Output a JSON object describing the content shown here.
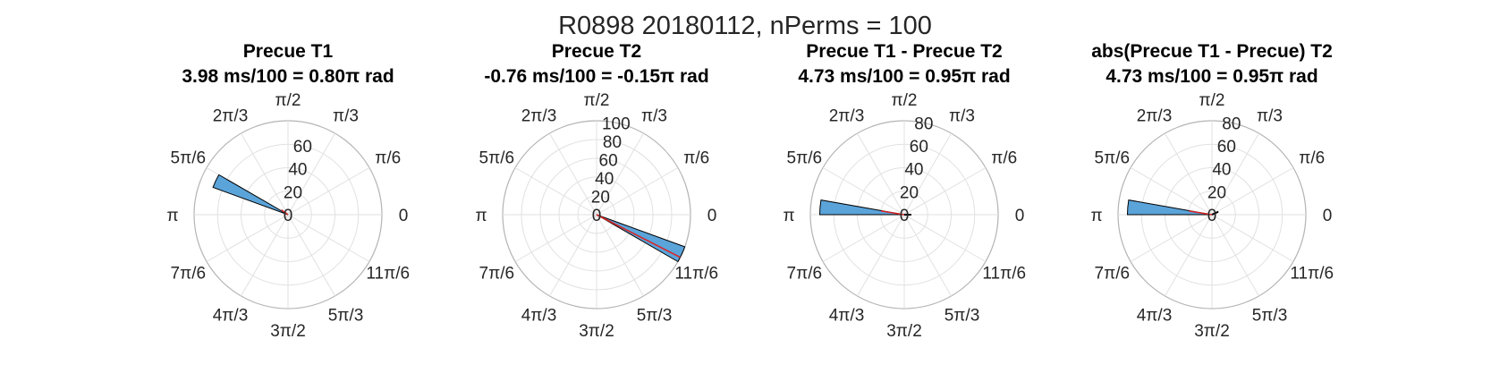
{
  "suptitle": "R0898 20180112, nPerms = 100",
  "colors": {
    "bar_fill": "#5ba4da",
    "bar_edge": "#000000",
    "mean_line": "#d62728",
    "grid": "#e1e1e1",
    "outer": "#b4b4b4"
  },
  "theta_tick_labels": [
    "0",
    "π/6",
    "π/3",
    "π/2",
    "2π/3",
    "5π/6",
    "π",
    "7π/6",
    "4π/3",
    "3π/2",
    "5π/3",
    "11π/6"
  ],
  "chart_data": [
    {
      "type": "polar-histogram",
      "title": "Precue T1",
      "subtitle": "3.98 ms/100 = 0.80π rad",
      "r_ticks": [
        "20",
        "40",
        "60"
      ],
      "r_max": 80,
      "bins": [
        {
          "angle_start": 150,
          "angle_end": 160,
          "count": 68
        }
      ],
      "mean_angle_deg": 144,
      "mean_length": 7
    },
    {
      "type": "polar-histogram",
      "title": "Precue T2",
      "subtitle": "-0.76 ms/100 = -0.15π rad",
      "r_ticks": [
        "20",
        "40",
        "60",
        "80",
        "100"
      ],
      "r_max": 100,
      "bins": [
        {
          "angle_start": 330,
          "angle_end": 340,
          "count": 100
        }
      ],
      "mean_angle_deg": 333,
      "mean_length": 100
    },
    {
      "type": "polar-histogram",
      "title": "Precue T1 - Precue T2",
      "subtitle": "4.73 ms/100 = 0.95π rad",
      "r_ticks": [
        "20",
        "40",
        "60",
        "80"
      ],
      "r_max": 80,
      "bins": [
        {
          "angle_start": 170,
          "angle_end": 180,
          "count": 72
        }
      ],
      "mean_angle_deg": 171,
      "mean_length": 20,
      "tail_angle_deg": 0,
      "tail_length": 6
    },
    {
      "type": "polar-histogram",
      "title": "abs(Precue T1 - Precue) T2",
      "subtitle": "4.73 ms/100 = 0.95π rad",
      "r_ticks": [
        "20",
        "40",
        "60",
        "80"
      ],
      "r_max": 80,
      "bins": [
        {
          "angle_start": 170,
          "angle_end": 180,
          "count": 72
        }
      ],
      "mean_angle_deg": 171,
      "mean_length": 20,
      "tail_angle_deg": 25,
      "tail_length": 6
    }
  ]
}
